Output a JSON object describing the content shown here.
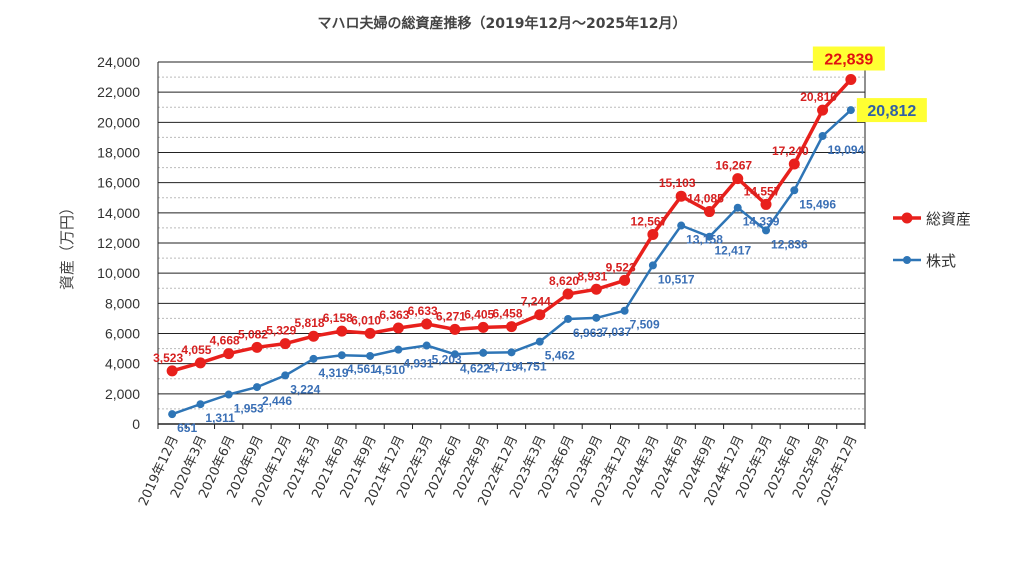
{
  "chart_data": {
    "type": "line",
    "title": "マハロ夫婦の総資産推移（2019年12月～2025年12月）",
    "ylabel": "資産（万円）",
    "xlabel": "",
    "ylim": [
      0,
      24000
    ],
    "yticks": [
      "0",
      "2,000",
      "4,000",
      "6,000",
      "8,000",
      "10,000",
      "12,000",
      "14,000",
      "16,000",
      "18,000",
      "20,000",
      "22,000",
      "24,000"
    ],
    "grid": true,
    "legend_position": "right",
    "categories": [
      "2019年12月",
      "2020年3月",
      "2020年6月",
      "2020年9月",
      "2020年12月",
      "2021年3月",
      "2021年6月",
      "2021年9月",
      "2021年12月",
      "2022年3月",
      "2022年6月",
      "2022年9月",
      "2022年12月",
      "2023年3月",
      "2023年6月",
      "2023年9月",
      "2023年12月",
      "2024年3月",
      "2024年6月",
      "2024年9月",
      "2024年12月",
      "2025年3月",
      "2025年6月",
      "2025年9月",
      "2025年12月"
    ],
    "series": [
      {
        "name": "総資産",
        "color": "#e8201c",
        "values": [
          3523,
          4055,
          4668,
          5082,
          5329,
          5818,
          6158,
          6010,
          6363,
          6633,
          6271,
          6405,
          6458,
          7244,
          8620,
          8931,
          9523,
          12567,
          15103,
          14085,
          16267,
          14557,
          17240,
          20810,
          22839
        ],
        "labels": [
          "3,523",
          "4,055",
          "4,668",
          "5,082",
          "5,329",
          "5,818",
          "6,158",
          "6,010",
          "6,363",
          "6,633",
          "6,271",
          "6,405",
          "6,458",
          "7,244",
          "8,620",
          "8,931",
          "9,523",
          "12,567",
          "15,103",
          "14,085",
          "16,267",
          "14,557",
          "17,240",
          "20,810",
          "22,839"
        ]
      },
      {
        "name": "株式",
        "color": "#2e75b6",
        "values": [
          651,
          1311,
          1953,
          2446,
          3224,
          4319,
          4561,
          4510,
          4931,
          5203,
          4622,
          4719,
          4751,
          5462,
          6963,
          7037,
          7509,
          10517,
          13158,
          12417,
          14339,
          12836,
          15496,
          19094,
          20812
        ],
        "labels": [
          "651",
          "1,311",
          "1,953",
          "2,446",
          "3,224",
          "4,319",
          "4,561",
          "4,510",
          "4,931",
          "5,203",
          "4,622",
          "4,719",
          "4,751",
          "5,462",
          "6,963",
          "7,037",
          "7,509",
          "10,517",
          "13,158",
          "12,417",
          "14,339",
          "12,836",
          "15,496",
          "19,094",
          "20,812"
        ]
      }
    ]
  }
}
